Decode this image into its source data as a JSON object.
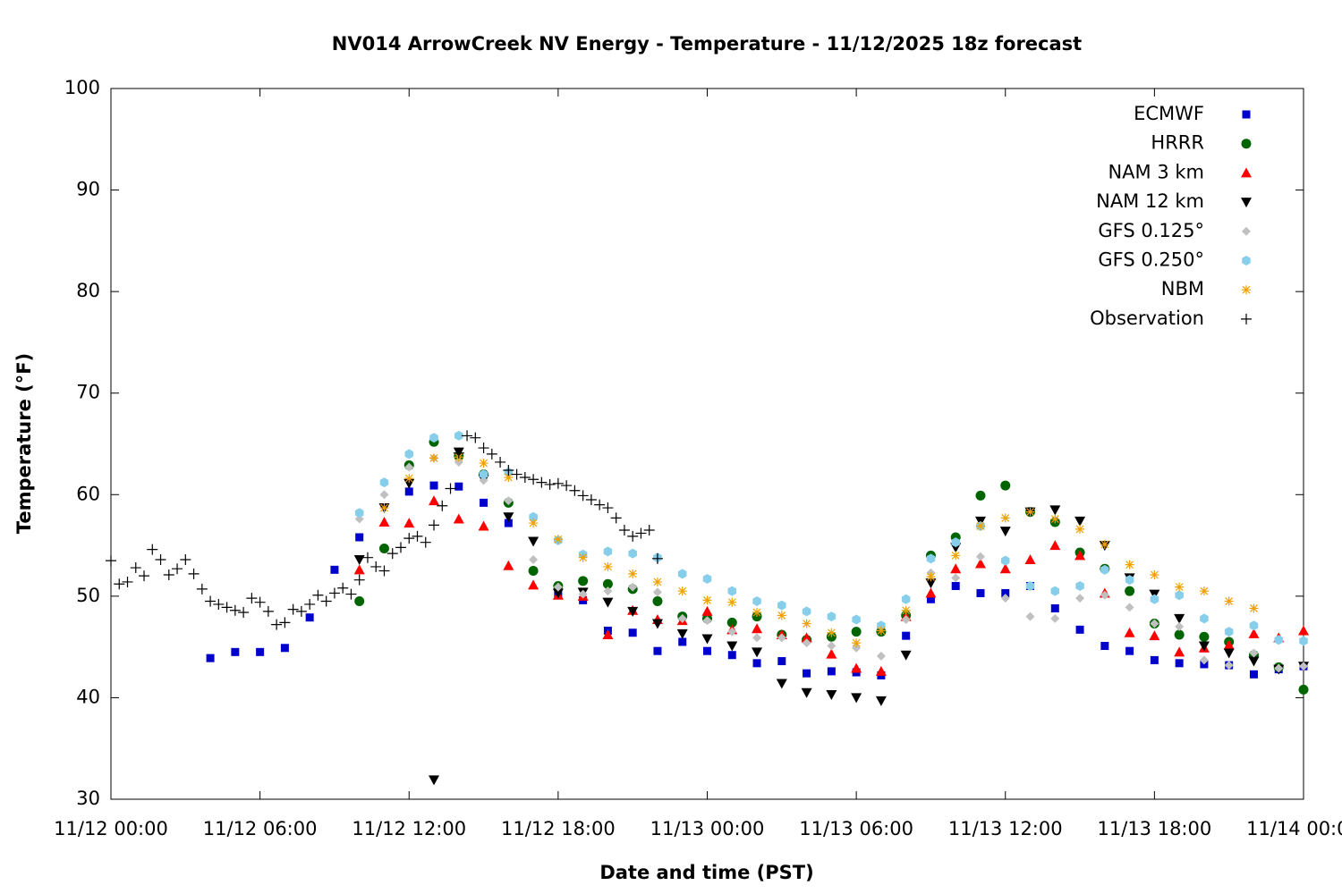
{
  "chart_data": {
    "type": "scatter",
    "title": "NV014 ArrowCreek NV Energy - Temperature - 11/12/2025 18z forecast",
    "x_label": "Date and time (PST)",
    "y_label": "Temperature (°F)",
    "xlim": [
      "11/12 00:00",
      "11/14 00:00"
    ],
    "xticks": [
      "11/12 00:00",
      "11/12 06:00",
      "11/12 12:00",
      "11/12 18:00",
      "11/13 00:00",
      "11/13 06:00",
      "11/13 12:00",
      "11/13 18:00",
      "11/14 00:00"
    ],
    "ylim": [
      30,
      100
    ],
    "yticks": [
      30,
      40,
      50,
      60,
      70,
      80,
      90,
      100
    ],
    "legend": "upper-right",
    "x": [
      "11/12 00:00",
      "11/12 01:00",
      "11/12 02:00",
      "11/12 03:00",
      "11/12 04:00",
      "11/12 05:00",
      "11/12 06:00",
      "11/12 07:00",
      "11/12 08:00",
      "11/12 09:00",
      "11/12 10:00",
      "11/12 11:00",
      "11/12 12:00",
      "11/12 13:00",
      "11/12 14:00",
      "11/12 15:00",
      "11/12 16:00",
      "11/12 17:00",
      "11/12 18:00",
      "11/12 19:00",
      "11/12 20:00",
      "11/12 21:00",
      "11/12 22:00",
      "11/12 23:00",
      "11/13 00:00",
      "11/13 01:00",
      "11/13 02:00",
      "11/13 03:00",
      "11/13 04:00",
      "11/13 05:00",
      "11/13 06:00",
      "11/13 07:00",
      "11/13 08:00",
      "11/13 09:00",
      "11/13 10:00",
      "11/13 11:00",
      "11/13 12:00",
      "11/13 13:00",
      "11/13 14:00",
      "11/13 15:00",
      "11/13 16:00",
      "11/13 17:00",
      "11/13 18:00",
      "11/13 19:00",
      "11/13 20:00",
      "11/13 21:00",
      "11/13 22:00",
      "11/13 23:00",
      "11/14 00:00"
    ],
    "series": [
      {
        "name": "ECMWF",
        "color": "#0000cc",
        "marker": "square",
        "values": [
          null,
          null,
          null,
          null,
          43.9,
          44.5,
          44.5,
          44.9,
          47.9,
          52.6,
          55.8,
          null,
          60.3,
          60.9,
          60.8,
          59.2,
          57.2,
          null,
          50.1,
          49.6,
          46.6,
          46.4,
          44.6,
          45.5,
          44.6,
          44.2,
          43.4,
          43.6,
          42.4,
          42.6,
          42.5,
          42.2,
          46.1,
          49.7,
          51.0,
          50.3,
          50.3,
          51.0,
          48.8,
          46.7,
          45.1,
          44.6,
          43.7,
          43.4,
          43.3,
          43.2,
          42.3,
          42.8,
          43.1
        ]
      },
      {
        "name": "HRRR",
        "color": "#006400",
        "marker": "circle",
        "values": [
          null,
          null,
          null,
          null,
          null,
          null,
          null,
          null,
          null,
          null,
          49.5,
          54.7,
          62.9,
          65.2,
          63.8,
          62.0,
          59.2,
          52.5,
          51.0,
          51.5,
          51.2,
          50.7,
          49.5,
          48.0,
          47.8,
          47.4,
          48.0,
          46.2,
          45.7,
          46.0,
          46.5,
          46.5,
          48.1,
          54.0,
          55.8,
          59.9,
          60.9,
          58.3,
          57.3,
          54.3,
          52.7,
          50.5,
          47.3,
          46.2,
          46.0,
          45.5,
          44.2,
          43.0,
          40.8
        ]
      },
      {
        "name": "NAM 3 km",
        "color": "#ff0000",
        "marker": "triangle",
        "values": [
          null,
          null,
          null,
          null,
          null,
          null,
          null,
          null,
          null,
          null,
          52.6,
          57.3,
          57.2,
          59.4,
          57.6,
          56.9,
          53.0,
          51.1,
          50.1,
          50.0,
          46.2,
          48.6,
          47.7,
          47.6,
          48.5,
          46.7,
          46.8,
          46.2,
          45.9,
          44.3,
          42.9,
          42.6,
          48.0,
          50.3,
          52.7,
          53.2,
          52.7,
          53.6,
          55.0,
          54.0,
          50.3,
          46.4,
          46.1,
          44.5,
          44.9,
          45.2,
          46.3,
          45.9,
          46.6
        ]
      },
      {
        "name": "NAM 12 km",
        "color": "#000000",
        "marker": "triangle-down",
        "values": [
          null,
          null,
          null,
          null,
          null,
          null,
          null,
          null,
          null,
          null,
          53.6,
          58.7,
          61.1,
          31.9,
          64.2,
          61.5,
          57.8,
          55.4,
          50.3,
          50.4,
          49.4,
          48.5,
          47.3,
          46.3,
          45.8,
          45.1,
          44.5,
          41.4,
          40.5,
          40.3,
          40.0,
          39.7,
          44.2,
          51.3,
          54.8,
          57.4,
          56.4,
          58.3,
          58.5,
          57.4,
          55.0,
          51.8,
          50.2,
          47.8,
          45.1,
          44.4,
          43.6,
          42.8,
          43.1
        ]
      },
      {
        "name": "GFS 0.125°",
        "color": "#c0c0c0",
        "marker": "diamond",
        "values": [
          null,
          null,
          null,
          null,
          null,
          null,
          null,
          null,
          null,
          null,
          57.6,
          60.0,
          62.7,
          63.6,
          63.2,
          61.4,
          59.4,
          53.6,
          50.9,
          50.2,
          50.5,
          50.9,
          50.4,
          47.8,
          47.6,
          46.5,
          45.9,
          45.9,
          45.4,
          45.1,
          44.9,
          44.1,
          47.7,
          52.3,
          51.8,
          53.9,
          49.8,
          48.0,
          47.8,
          49.8,
          50.1,
          48.9,
          47.3,
          47.0,
          43.7,
          43.2,
          44.4,
          42.9,
          43.1
        ]
      },
      {
        "name": "GFS 0.250°",
        "color": "#87ceeb",
        "marker": "hexagon",
        "values": [
          null,
          null,
          null,
          null,
          null,
          null,
          null,
          null,
          null,
          null,
          58.2,
          61.2,
          64.0,
          65.6,
          65.8,
          62.0,
          62.2,
          57.8,
          55.5,
          54.1,
          54.4,
          54.2,
          53.8,
          52.2,
          51.7,
          50.5,
          49.5,
          49.1,
          48.5,
          48.0,
          47.7,
          47.1,
          49.7,
          53.7,
          55.3,
          56.9,
          53.5,
          51.0,
          50.5,
          51.0,
          52.6,
          51.6,
          49.7,
          50.1,
          47.8,
          46.5,
          47.1,
          45.7,
          45.6
        ]
      },
      {
        "name": "NBM",
        "color": "#f0a000",
        "marker": "asterisk",
        "values": [
          null,
          null,
          null,
          null,
          null,
          null,
          null,
          null,
          null,
          null,
          null,
          58.7,
          61.6,
          63.6,
          63.7,
          63.1,
          61.7,
          57.2,
          55.6,
          53.8,
          52.9,
          52.2,
          51.4,
          50.5,
          49.6,
          49.4,
          48.4,
          48.1,
          47.3,
          46.4,
          45.4,
          46.6,
          48.6,
          51.9,
          54.0,
          56.9,
          57.7,
          58.3,
          57.6,
          56.6,
          55.1,
          53.1,
          52.1,
          50.9,
          50.5,
          49.5,
          48.8,
          null,
          null
        ]
      },
      {
        "name": "Observation",
        "color": "#000000",
        "marker": "plus",
        "x": [
          "11/12 00:00",
          "11/12 00:20",
          "11/12 00:40",
          "11/12 01:00",
          "11/12 01:20",
          "11/12 01:40",
          "11/12 02:00",
          "11/12 02:20",
          "11/12 02:40",
          "11/12 03:00",
          "11/12 03:20",
          "11/12 03:40",
          "11/12 04:00",
          "11/12 04:20",
          "11/12 04:40",
          "11/12 05:00",
          "11/12 05:20",
          "11/12 05:40",
          "11/12 06:00",
          "11/12 06:20",
          "11/12 06:40",
          "11/12 07:00",
          "11/12 07:20",
          "11/12 07:40",
          "11/12 08:00",
          "11/12 08:20",
          "11/12 08:40",
          "11/12 09:00",
          "11/12 09:20",
          "11/12 09:40",
          "11/12 10:00",
          "11/12 10:20",
          "11/12 10:40",
          "11/12 11:00",
          "11/12 11:20",
          "11/12 11:40",
          "11/12 12:00",
          "11/12 12:20",
          "11/12 12:40",
          "11/12 13:00",
          "11/12 13:20",
          "11/12 13:40",
          "11/12 14:00",
          "11/12 14:20",
          "11/12 14:40",
          "11/12 15:00",
          "11/12 15:20",
          "11/12 15:40",
          "11/12 16:00",
          "11/12 16:20",
          "11/12 16:40",
          "11/12 17:00",
          "11/12 17:20",
          "11/12 17:40",
          "11/12 18:00",
          "11/12 18:20",
          "11/12 18:40",
          "11/12 19:00",
          "11/12 19:20",
          "11/12 19:40",
          "11/12 20:00",
          "11/12 20:20",
          "11/12 20:40",
          "11/12 21:00",
          "11/12 21:20",
          "11/12 21:40",
          "11/12 22:00"
        ],
        "values": [
          53.5,
          51.2,
          51.4,
          52.8,
          52.0,
          54.6,
          53.6,
          52.1,
          52.7,
          53.6,
          52.2,
          50.7,
          49.5,
          49.2,
          48.9,
          48.6,
          48.4,
          49.8,
          49.4,
          48.5,
          47.2,
          47.4,
          48.7,
          48.5,
          49.2,
          50.1,
          49.5,
          50.3,
          50.8,
          50.2,
          51.6,
          53.8,
          52.9,
          52.5,
          54.2,
          54.8,
          55.7,
          55.9,
          55.3,
          57.0,
          58.9,
          60.6,
          64.1,
          65.8,
          65.6,
          64.6,
          64.0,
          63.2,
          62.4,
          62.0,
          61.7,
          61.5,
          61.2,
          61.0,
          61.1,
          60.9,
          60.4,
          59.9,
          59.5,
          59.0,
          58.7,
          57.7,
          56.5,
          55.9,
          56.2,
          56.5,
          53.7
        ]
      }
    ]
  }
}
